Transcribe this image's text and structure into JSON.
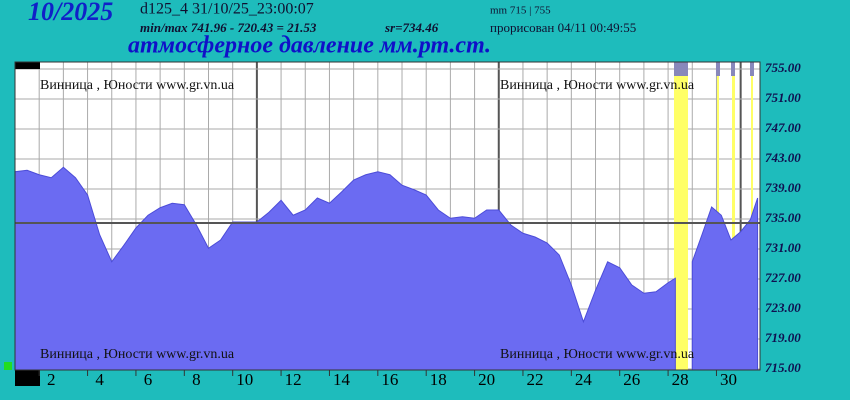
{
  "header": {
    "month": "10/2025",
    "station": "d125_4  31/10/25_23:00:07",
    "minmax": "min/max  741.96 - 720.43 = 21.53",
    "mean_label": "sr=734.46",
    "range_label": "mm 715 | 755",
    "drawn": "прорисован 04/11 00:49:55"
  },
  "chart_data": {
    "type": "area",
    "title": "атмосферное давление мм.рт.ст.",
    "watermark": "Винница , Юности  www.gr.vn.ua",
    "color": "#6b6bf2",
    "mean": 734.46,
    "x": [
      1.0,
      1.5,
      2.0,
      2.5,
      3.0,
      3.5,
      4.0,
      4.5,
      5.0,
      5.5,
      6.0,
      6.5,
      7.0,
      7.5,
      8.0,
      8.5,
      9.0,
      9.5,
      10.0,
      10.5,
      11.0,
      11.5,
      12.0,
      12.5,
      13.0,
      13.5,
      14.0,
      14.5,
      15.0,
      15.5,
      16.0,
      16.5,
      17.0,
      17.5,
      18.0,
      18.5,
      19.0,
      19.5,
      20.0,
      20.5,
      21.0,
      21.5,
      22.0,
      22.5,
      23.0,
      23.5,
      24.0,
      24.5,
      25.0,
      25.5,
      26.0,
      26.5,
      27.0,
      27.5,
      28.0,
      28.3,
      28.6,
      29.0,
      29.4,
      29.8,
      30.2,
      30.6,
      31.0,
      31.4,
      31.7
    ],
    "values": [
      741.3,
      741.5,
      740.9,
      740.5,
      741.9,
      740.5,
      738.2,
      732.9,
      729.3,
      731.5,
      733.8,
      735.5,
      736.5,
      737.1,
      736.9,
      734.2,
      731.1,
      732.2,
      734.6,
      734.6,
      734.6,
      735.9,
      737.5,
      735.5,
      736.2,
      737.8,
      737.1,
      738.6,
      740.2,
      740.9,
      741.3,
      740.9,
      739.5,
      738.9,
      738.2,
      736.2,
      735.1,
      735.3,
      735.1,
      736.2,
      736.2,
      734.2,
      733.1,
      732.6,
      731.8,
      730.2,
      726.2,
      721.3,
      725.5,
      729.3,
      728.5,
      726.2,
      725.1,
      725.3,
      726.5,
      727.1,
      null,
      729.3,
      732.9,
      736.6,
      735.5,
      732.2,
      733.3,
      734.9,
      737.8
    ],
    "xlim": [
      1,
      31.8
    ],
    "xticks": [
      2,
      4,
      6,
      8,
      10,
      12,
      14,
      16,
      18,
      20,
      22,
      24,
      26,
      28,
      30
    ],
    "ylim": [
      715,
      755
    ],
    "yticks": [
      {
        "value": 715,
        "label": "715.00"
      },
      {
        "value": 719,
        "label": "719.00"
      },
      {
        "value": 723,
        "label": "723.00"
      },
      {
        "value": 727,
        "label": "727.00"
      },
      {
        "value": 731,
        "label": "731.00"
      },
      {
        "value": 735,
        "label": "735.00"
      },
      {
        "value": 739,
        "label": "739.00"
      },
      {
        "value": 743,
        "label": "743.00"
      },
      {
        "value": 747,
        "label": "747.00"
      },
      {
        "value": 751,
        "label": "751.00"
      },
      {
        "value": 755,
        "label": "755.00"
      }
    ],
    "grid": true
  }
}
